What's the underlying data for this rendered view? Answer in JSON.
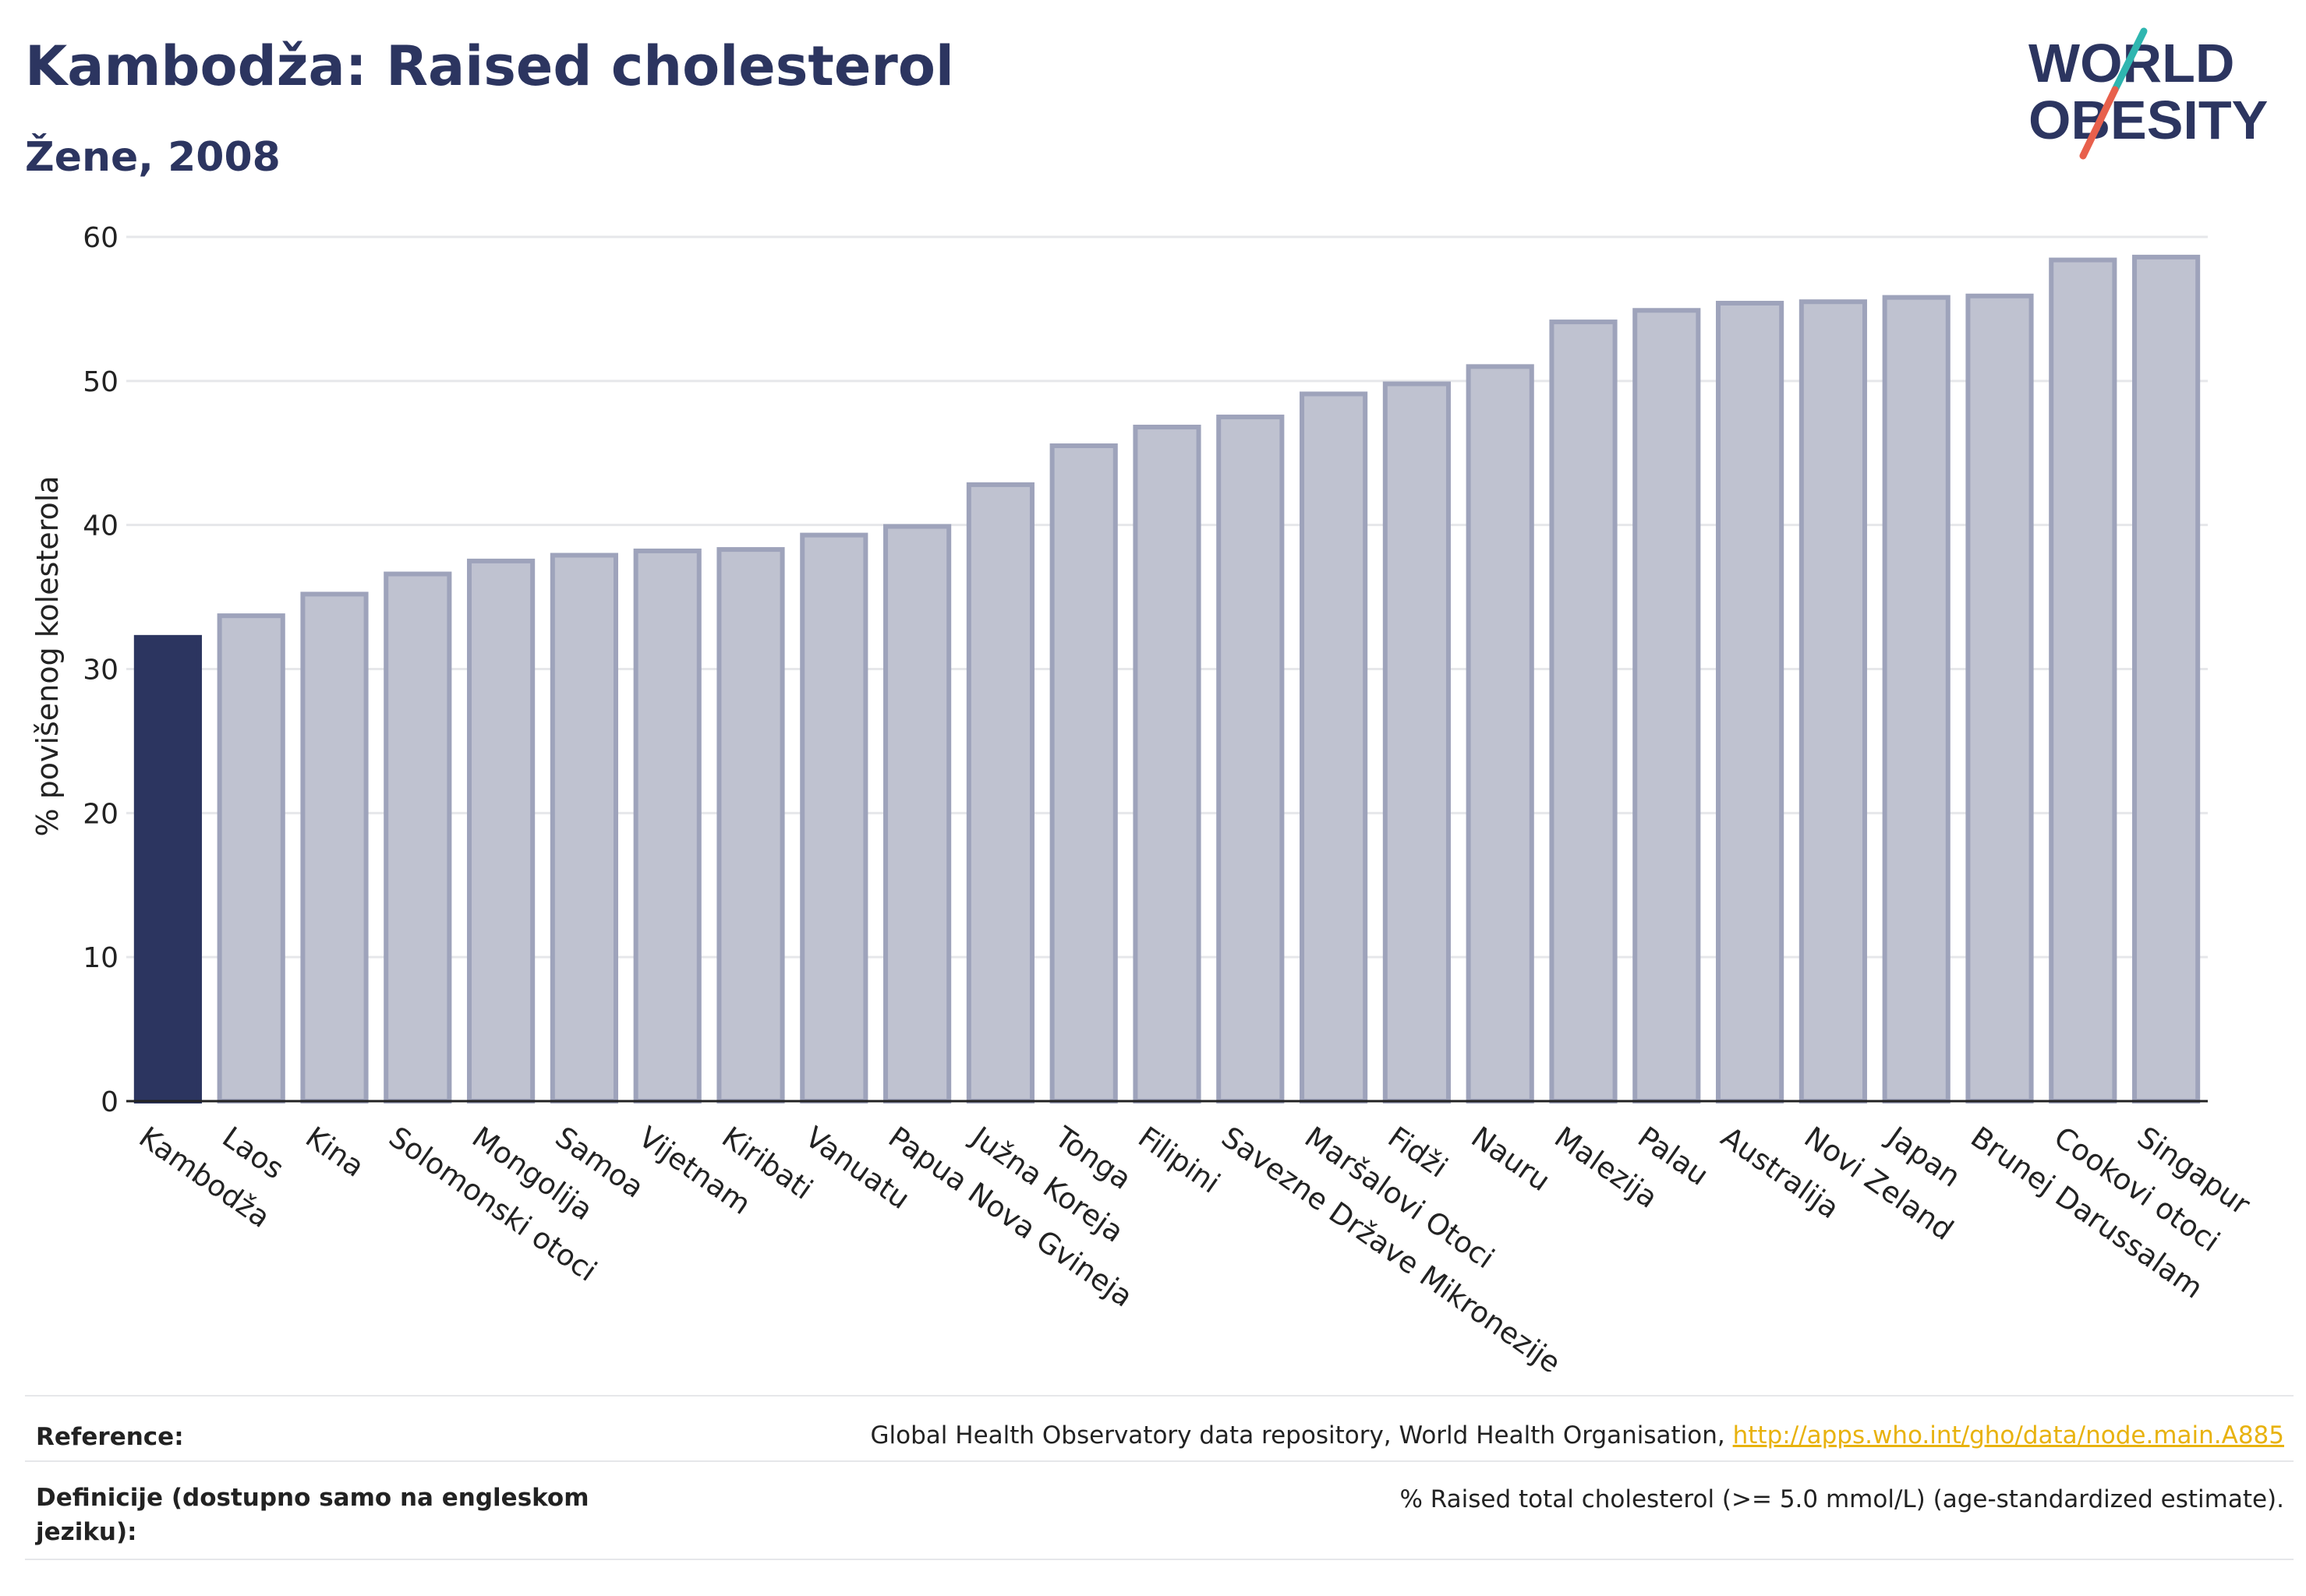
{
  "header": {
    "title": "Kambodža: Raised cholesterol",
    "subtitle": "Žene, 2008"
  },
  "logo": {
    "line1": "WORLD",
    "line2": "OBESITY",
    "slash_colors": [
      "#2fb6b0",
      "#e8604c"
    ]
  },
  "colors": {
    "highlight_bar": "#2c3560",
    "other_bar": "#bfc2d0",
    "other_bar_border": "#9ea3bb",
    "grid": "#e6e7ea",
    "text": "#2c3560"
  },
  "chart_data": {
    "type": "bar",
    "title": "",
    "xlabel": "",
    "ylabel": "% povišenog kolesterola",
    "ylim": [
      0,
      60
    ],
    "yticks": [
      0,
      10,
      20,
      30,
      40,
      50,
      60
    ],
    "grid": true,
    "highlight": "Kambodža",
    "categories": [
      "Kambodža",
      "Laos",
      "Kina",
      "Solomonski otoci",
      "Mongolija",
      "Samoa",
      "Vijetnam",
      "Kiribati",
      "Vanuatu",
      "Papua Nova Gvineja",
      "Južna Koreja",
      "Tonga",
      "Filipini",
      "Savezne Države Mikronezije",
      "Maršalovi Otoci",
      "Fidži",
      "Nauru",
      "Malezija",
      "Palau",
      "Australija",
      "Novi Zeland",
      "Japan",
      "Brunej Darussalam",
      "Cookovi otoci",
      "Singapur"
    ],
    "values": [
      32.2,
      33.7,
      35.2,
      36.6,
      37.5,
      37.9,
      38.2,
      38.3,
      39.3,
      39.9,
      42.8,
      45.5,
      46.8,
      47.5,
      49.1,
      49.8,
      51.0,
      54.1,
      54.9,
      55.4,
      55.5,
      55.8,
      55.9,
      58.4,
      58.6
    ]
  },
  "footer": {
    "reference_label": "Reference:",
    "reference_text": "Global Health Observatory data repository, World Health Organisation, ",
    "reference_link": "http://apps.who.int/gho/data/node.main.A885",
    "definition_label": "Definicije (dostupno samo na engleskom jeziku):",
    "definition_text": "% Raised total cholesterol (>= 5.0 mmol/L) (age-standardized estimate)."
  }
}
